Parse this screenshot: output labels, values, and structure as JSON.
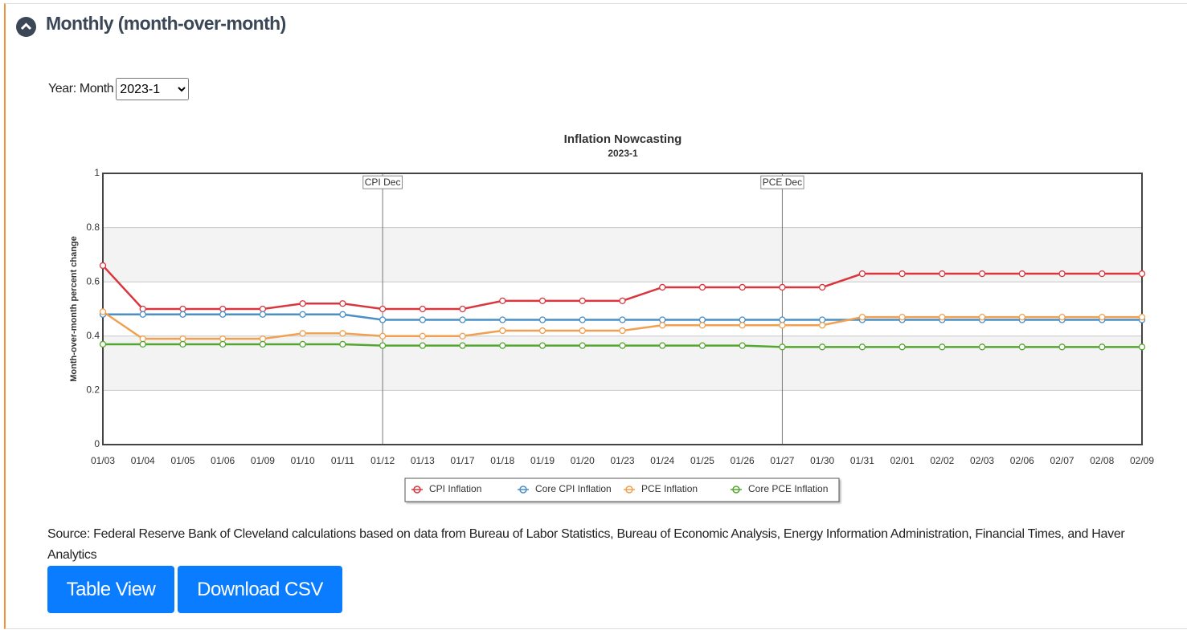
{
  "header": {
    "title": "Monthly (month-over-month)"
  },
  "selector": {
    "label": "Year: Month",
    "value": "2023-1"
  },
  "chart_data": {
    "type": "line",
    "title": "Inflation Nowcasting",
    "subtitle": "2023-1",
    "y_label": "Month-over-month percent change",
    "categories": [
      "01/03",
      "01/04",
      "01/05",
      "01/06",
      "01/09",
      "01/10",
      "01/11",
      "01/12",
      "01/13",
      "01/17",
      "01/18",
      "01/19",
      "01/20",
      "01/23",
      "01/24",
      "01/25",
      "01/26",
      "01/27",
      "01/30",
      "01/31",
      "02/01",
      "02/02",
      "02/03",
      "02/06",
      "02/07",
      "02/08",
      "02/09"
    ],
    "series": [
      {
        "name": "CPI Inflation",
        "color": "#d9363e",
        "values": [
          0.66,
          0.5,
          0.5,
          0.5,
          0.5,
          0.52,
          0.52,
          0.5,
          0.5,
          0.5,
          0.53,
          0.53,
          0.53,
          0.53,
          0.58,
          0.58,
          0.58,
          0.58,
          0.58,
          0.63,
          0.63,
          0.63,
          0.63,
          0.63,
          0.63,
          0.63,
          0.63
        ]
      },
      {
        "name": "Core CPI Inflation",
        "color": "#4a8fc6",
        "values": [
          0.48,
          0.48,
          0.48,
          0.48,
          0.48,
          0.48,
          0.48,
          0.46,
          0.46,
          0.46,
          0.46,
          0.46,
          0.46,
          0.46,
          0.46,
          0.46,
          0.46,
          0.46,
          0.46,
          0.46,
          0.46,
          0.46,
          0.46,
          0.46,
          0.46,
          0.46,
          0.46
        ]
      },
      {
        "name": "PCE Inflation",
        "color": "#f0a050",
        "values": [
          0.49,
          0.39,
          0.39,
          0.39,
          0.39,
          0.41,
          0.41,
          0.4,
          0.4,
          0.4,
          0.42,
          0.42,
          0.42,
          0.42,
          0.44,
          0.44,
          0.44,
          0.44,
          0.44,
          0.47,
          0.47,
          0.47,
          0.47,
          0.47,
          0.47,
          0.47,
          0.47
        ]
      },
      {
        "name": "Core PCE Inflation",
        "color": "#55a630",
        "values": [
          0.37,
          0.37,
          0.37,
          0.37,
          0.37,
          0.37,
          0.37,
          0.365,
          0.365,
          0.365,
          0.365,
          0.365,
          0.365,
          0.365,
          0.365,
          0.365,
          0.365,
          0.36,
          0.36,
          0.36,
          0.36,
          0.36,
          0.36,
          0.36,
          0.36,
          0.36,
          0.36
        ]
      }
    ],
    "ylim": [
      0,
      1
    ],
    "yticks": [
      0,
      0.2,
      0.4,
      0.6,
      0.8,
      1
    ],
    "grid": true,
    "bands": true,
    "annotations": [
      {
        "x": "01/12",
        "label": "CPI Dec"
      },
      {
        "x": "01/27",
        "label": "PCE Dec"
      }
    ],
    "legend": "bottom"
  },
  "source": "Source: Federal Reserve Bank of Cleveland calculations based on data from Bureau of Labor Statistics, Bureau of Economic Analysis, Energy Information Administration, Financial Times, and Haver Analytics",
  "buttons": [
    "Table View",
    "Download CSV"
  ]
}
